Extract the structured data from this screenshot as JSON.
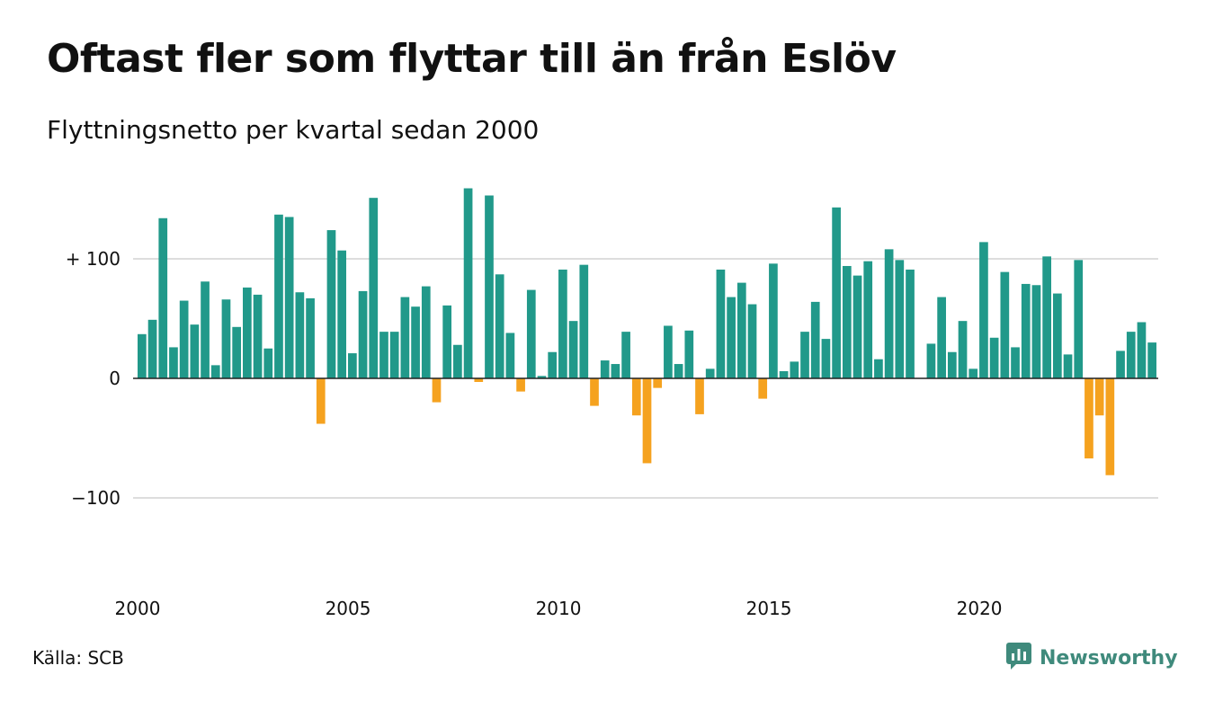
{
  "header": {
    "title": "Oftast fler som flyttar till än från Eslöv",
    "subtitle": "Flyttningsnetto per kvartal sedan 2000"
  },
  "footer": {
    "source": "Källa: SCB",
    "brand": "Newsworthy"
  },
  "colors": {
    "positive": "#21998a",
    "negative": "#f5a21f",
    "brand": "#3f8a7c",
    "gridline": "#dddddd"
  },
  "icons": {
    "brand_logo": "newsworthy-logo-icon"
  },
  "chart_data": {
    "type": "bar",
    "title": "Oftast fler som flyttar till än från Eslöv",
    "subtitle": "Flyttningsnetto per kvartal sedan 2000",
    "xlabel": "",
    "ylabel": "",
    "ylim": [
      -160,
      160
    ],
    "yticks": [
      {
        "value": 100,
        "label": "+ 100"
      },
      {
        "value": 0,
        "label": "0"
      },
      {
        "value": -100,
        "label": "−100"
      }
    ],
    "xticks": [
      "2000",
      "2005",
      "2010",
      "2015",
      "2020"
    ],
    "grid": true,
    "legend": "none",
    "x_start": "2000 Q1",
    "series": [
      {
        "values": [
          37,
          49,
          134,
          26,
          65,
          45,
          81,
          11,
          66,
          43,
          76,
          70,
          25,
          137,
          135,
          72,
          67,
          -38,
          124,
          107,
          21,
          73,
          151,
          39,
          39,
          68,
          60,
          77,
          -20,
          61,
          28,
          159,
          -3,
          153,
          87,
          38,
          -11,
          74,
          2,
          22,
          91,
          48,
          95,
          -23,
          15,
          12,
          39,
          -31,
          -71,
          -8,
          44,
          12,
          40,
          -30,
          8,
          91,
          68,
          80,
          62,
          -17,
          96,
          6,
          14,
          39,
          64,
          33,
          143,
          94,
          86,
          98,
          16,
          108,
          99,
          91,
          0,
          29,
          68,
          22,
          48,
          8,
          114,
          34,
          89,
          26,
          79,
          78,
          102,
          71,
          20,
          99,
          -67,
          -31,
          -81,
          23,
          39,
          47,
          30
        ]
      }
    ]
  }
}
